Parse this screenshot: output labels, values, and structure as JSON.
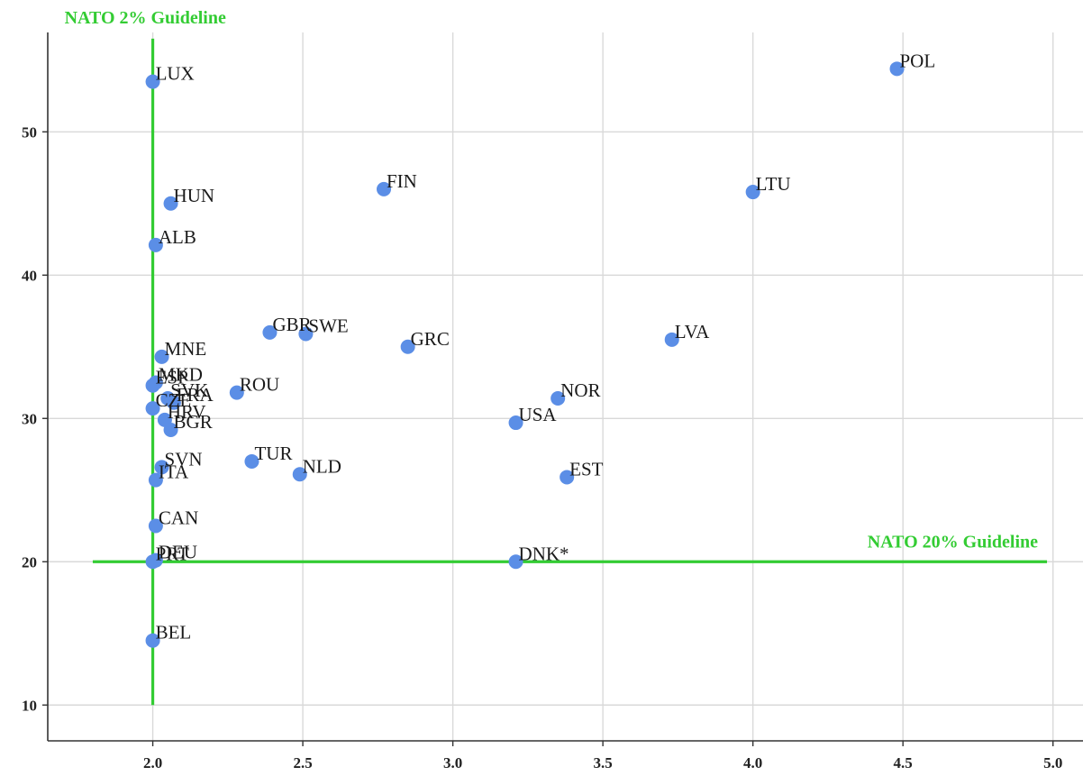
{
  "chart_data": {
    "type": "scatter",
    "title": "",
    "xlabel": "",
    "ylabel": "",
    "xlim": [
      1.65,
      5.1
    ],
    "ylim": [
      7.5,
      59.2
    ],
    "x_ticks": [
      2.0,
      2.5,
      3.0,
      3.5,
      4.0,
      4.5,
      5.0
    ],
    "x_tick_labels": [
      "2.0",
      "2.5",
      "3.0",
      "3.5",
      "4.0",
      "4.5",
      "5.0"
    ],
    "y_ticks": [
      10,
      20,
      30,
      40,
      50
    ],
    "y_tick_labels": [
      "10",
      "20",
      "30",
      "40",
      "50"
    ],
    "grid": true,
    "point_color": "#5b8ee6",
    "guide_color": "#33cc33",
    "guidelines": [
      {
        "orientation": "vertical",
        "x": 2.0,
        "y_from": 10.0,
        "y_to": 56.5,
        "label": "NATO 2% Guideline"
      },
      {
        "orientation": "horizontal",
        "y": 20.0,
        "x_from": 1.8,
        "x_to": 4.98,
        "label": "NATO 20% Guideline"
      }
    ],
    "points": [
      {
        "label": "LUX",
        "x": 2.0,
        "y": 53.5
      },
      {
        "label": "POL",
        "x": 4.48,
        "y": 54.4
      },
      {
        "label": "HUN",
        "x": 2.06,
        "y": 45.0
      },
      {
        "label": "FIN",
        "x": 2.77,
        "y": 46.0
      },
      {
        "label": "LTU",
        "x": 4.0,
        "y": 45.8
      },
      {
        "label": "ALB",
        "x": 2.01,
        "y": 42.1
      },
      {
        "label": "GBR",
        "x": 2.39,
        "y": 36.0
      },
      {
        "label": "SWE",
        "x": 2.51,
        "y": 35.9
      },
      {
        "label": "GRC",
        "x": 2.85,
        "y": 35.0
      },
      {
        "label": "LVA",
        "x": 3.73,
        "y": 35.5
      },
      {
        "label": "MNE",
        "x": 2.03,
        "y": 34.3
      },
      {
        "label": "MKD",
        "x": 2.01,
        "y": 32.5
      },
      {
        "label": "ESP",
        "x": 2.0,
        "y": 32.3
      },
      {
        "label": "ROU",
        "x": 2.28,
        "y": 31.8
      },
      {
        "label": "NOR",
        "x": 3.35,
        "y": 31.4
      },
      {
        "label": "SVK",
        "x": 2.05,
        "y": 31.4
      },
      {
        "label": "FRA",
        "x": 2.07,
        "y": 31.1
      },
      {
        "label": "CZE",
        "x": 2.0,
        "y": 30.7
      },
      {
        "label": "USA",
        "x": 3.21,
        "y": 29.7
      },
      {
        "label": "HRV",
        "x": 2.04,
        "y": 29.9
      },
      {
        "label": "BGR",
        "x": 2.06,
        "y": 29.2
      },
      {
        "label": "TUR",
        "x": 2.33,
        "y": 27.0
      },
      {
        "label": "NLD",
        "x": 2.49,
        "y": 26.1
      },
      {
        "label": "SVN",
        "x": 2.03,
        "y": 26.6
      },
      {
        "label": "ITA",
        "x": 2.01,
        "y": 25.7
      },
      {
        "label": "EST",
        "x": 3.38,
        "y": 25.9
      },
      {
        "label": "CAN",
        "x": 2.01,
        "y": 22.5
      },
      {
        "label": "DEU",
        "x": 2.01,
        "y": 20.1
      },
      {
        "label": "PRT",
        "x": 2.0,
        "y": 20.0
      },
      {
        "label": "DNK*",
        "x": 3.21,
        "y": 20.0
      },
      {
        "label": "BEL",
        "x": 2.0,
        "y": 14.5
      }
    ]
  }
}
